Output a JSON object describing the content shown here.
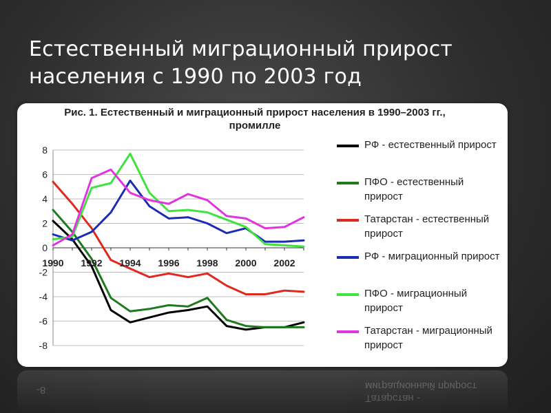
{
  "slide": {
    "title_line1": "Естественный миграционный прирост",
    "title_line2": "населения с 1990 по 2003 год"
  },
  "chart_data": {
    "type": "line",
    "title_line1": "Рис. 1. Естественный и миграционный прирост населения в 1990–2003 гг.,",
    "title_line2": "промилле",
    "x": [
      1990,
      1991,
      1992,
      1993,
      1994,
      1995,
      1996,
      1997,
      1998,
      1999,
      2000,
      2001,
      2002,
      2003
    ],
    "x_tick_labels": [
      "1990",
      "1992",
      "1994",
      "1996",
      "1998",
      "2000",
      "2002"
    ],
    "y_ticks": [
      8,
      6,
      4,
      2,
      0,
      -2,
      -4,
      -6,
      -8
    ],
    "ylim": [
      -8,
      8
    ],
    "grid": "horizontal",
    "legend_position": "right",
    "series": [
      {
        "name": "РФ - естественный прирост",
        "color": "#000000",
        "values": [
          2.2,
          0.7,
          -1.5,
          -5.1,
          -6.1,
          -5.7,
          -5.3,
          -5.1,
          -4.8,
          -6.4,
          -6.7,
          -6.5,
          -6.5,
          -6.1
        ]
      },
      {
        "name": "ПФО - естественный прирост",
        "color": "#1f7a1f",
        "values": [
          3.1,
          1.3,
          -0.9,
          -4.1,
          -5.2,
          -5.0,
          -4.7,
          -4.8,
          -4.1,
          -5.9,
          -6.4,
          -6.5,
          -6.5,
          -6.5
        ]
      },
      {
        "name": "Татарстан - естественный прирост",
        "color": "#e0281e",
        "values": [
          5.4,
          3.6,
          1.6,
          -1.0,
          -1.7,
          -2.4,
          -2.1,
          -2.4,
          -2.1,
          -3.1,
          -3.8,
          -3.8,
          -3.5,
          -3.6
        ]
      },
      {
        "name": "РФ - миграционный прирост",
        "color": "#1a2bb5",
        "values": [
          1.1,
          0.6,
          1.3,
          2.9,
          5.5,
          3.4,
          2.4,
          2.5,
          2.0,
          1.2,
          1.6,
          0.5,
          0.5,
          0.6
        ]
      },
      {
        "name": "ПФО - миграционный прирост",
        "color": "#3fe23f",
        "values": [
          0.7,
          0.9,
          4.9,
          5.3,
          7.7,
          4.5,
          3.0,
          3.1,
          2.9,
          2.3,
          1.7,
          0.3,
          0.2,
          0.1
        ]
      },
      {
        "name": "Татарстан - миграционный прирост",
        "color": "#e034e0",
        "values": [
          0.2,
          1.1,
          5.7,
          6.4,
          4.5,
          3.9,
          3.6,
          4.4,
          3.9,
          2.6,
          2.4,
          1.6,
          1.7,
          2.5
        ]
      }
    ]
  },
  "reflection": {
    "label_a": "Татарстан -",
    "label_b": "миграционный прирост",
    "tick": "-8"
  }
}
